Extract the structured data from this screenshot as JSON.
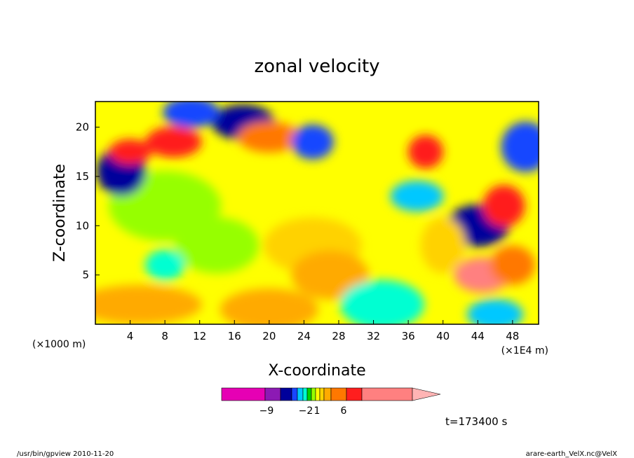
{
  "chart_data": {
    "type": "heatmap",
    "title": "zonal velocity",
    "xlabel": "X-coordinate",
    "ylabel": "Z-coordinate",
    "x_units_left": "(×1000 m)",
    "x_units_right": "(×1E4 m)",
    "time_label": "t=173400 s",
    "xlim": [
      0,
      51
    ],
    "ylim": [
      0,
      22.6
    ],
    "x_ticks": [
      4,
      8,
      12,
      16,
      20,
      24,
      28,
      32,
      36,
      40,
      44,
      48
    ],
    "y_ticks": [
      5,
      10,
      15,
      20
    ],
    "colorbar": {
      "colors": [
        "#e600b4",
        "#8c1ab4",
        "#00009b",
        "#1946ff",
        "#00c8ff",
        "#00ffd2",
        "#00d200",
        "#96ff00",
        "#ffff00",
        "#ffd200",
        "#ffaa00",
        "#ff7800",
        "#ff1e1e",
        "#ff8080",
        "#ffb4b4"
      ],
      "tick_labels": [
        {
          "text": "−9",
          "value": -9
        },
        {
          "text": "−2",
          "value": -2
        },
        {
          "text": "1",
          "value": 1
        },
        {
          "text": "6",
          "value": 6
        }
      ]
    },
    "field_blobs": [
      {
        "x": 25,
        "z": 8,
        "v": 1
      },
      {
        "x": 27,
        "z": 5,
        "v": 2
      },
      {
        "x": 8,
        "z": 12,
        "v": -0.5
      },
      {
        "x": 14,
        "z": 8,
        "v": -0.5
      },
      {
        "x": 5,
        "z": 2,
        "v": 2.5
      },
      {
        "x": 20,
        "z": 1.5,
        "v": 2
      },
      {
        "x": 33,
        "z": 2,
        "v": -3
      },
      {
        "x": 3,
        "z": 15.5,
        "v": -8
      },
      {
        "x": 4,
        "z": 17.5,
        "v": 4
      },
      {
        "x": 9,
        "z": 18.5,
        "v": 4
      },
      {
        "x": 17,
        "z": 20.5,
        "v": -8
      },
      {
        "x": 11,
        "z": 21.5,
        "v": -6
      },
      {
        "x": 20,
        "z": 19,
        "v": 3
      },
      {
        "x": 25,
        "z": 18.5,
        "v": -5
      },
      {
        "x": 38,
        "z": 17.5,
        "v": 4
      },
      {
        "x": 37,
        "z": 13,
        "v": -4
      },
      {
        "x": 44,
        "z": 10,
        "v": -7
      },
      {
        "x": 44.5,
        "z": 5,
        "v": 6
      },
      {
        "x": 47,
        "z": 12,
        "v": 4
      },
      {
        "x": 49.5,
        "z": 18,
        "v": -6
      },
      {
        "x": 48,
        "z": 6,
        "v": 3
      },
      {
        "x": 46,
        "z": 1,
        "v": -4
      },
      {
        "x": 8,
        "z": 6,
        "v": -3
      },
      {
        "x": 40,
        "z": 8,
        "v": 1.5
      }
    ]
  },
  "footer": {
    "left": "/usr/bin/gpview   2010-11-20",
    "right": "arare-earth_VelX.nc@VelX"
  }
}
